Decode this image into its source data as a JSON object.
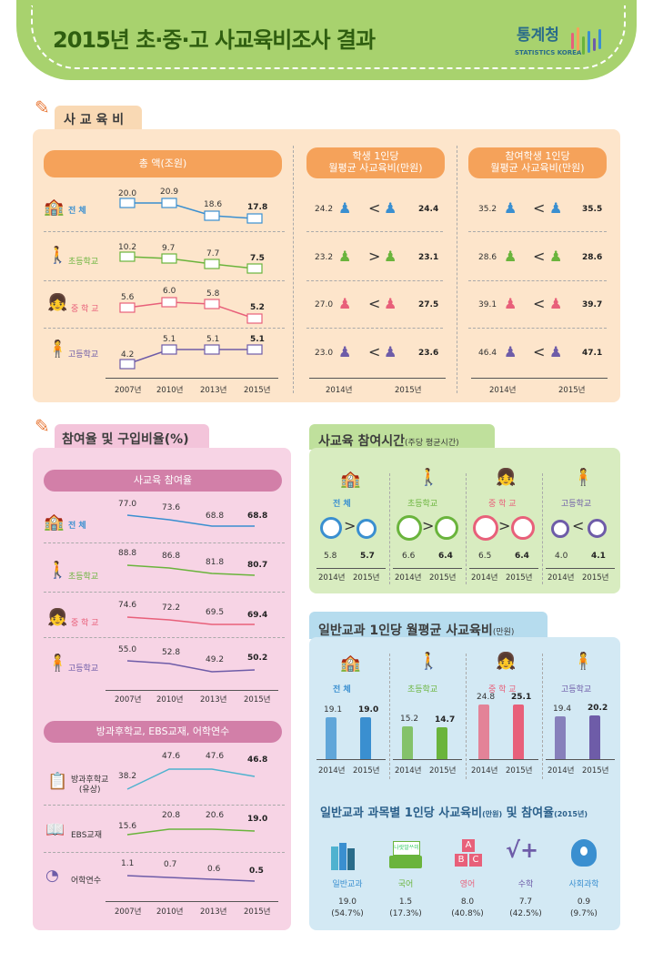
{
  "header": {
    "title": "2015년 초·중·고 사교육비조사 결과",
    "logo_name": "통계청",
    "logo_sub": "STATISTICS KOREA"
  },
  "colors": {
    "orange": "#f5a25a",
    "pink": "#ee8fb2",
    "green": "#a8d26e",
    "blue": "#86c7e3",
    "elem": "#6ab43c",
    "middle": "#e8607a",
    "high": "#6e5ca8",
    "total": "#3a8fd0"
  },
  "spend": {
    "section_title": "사 교 육 비",
    "total_header": "총     액(조원)",
    "student_header": "학생 1인당\n월평균 사교육비(만원)",
    "participant_header": "참여학생 1인당\n월평균 사교육비(만원)",
    "rows": [
      {
        "label": "전     체",
        "total": [
          "20.0",
          "20.9",
          "18.6",
          "17.8"
        ],
        "student": [
          "24.2",
          "<",
          "24.4"
        ],
        "participant": [
          "35.2",
          "<",
          "35.5"
        ]
      },
      {
        "label": "초등학교",
        "total": [
          "10.2",
          "9.7",
          "7.7",
          "7.5"
        ],
        "student": [
          "23.2",
          ">",
          "23.1"
        ],
        "participant": [
          "28.6",
          "<",
          "28.6"
        ]
      },
      {
        "label": "중 학 교",
        "total": [
          "5.6",
          "6.0",
          "5.8",
          "5.2"
        ],
        "student": [
          "27.0",
          "<",
          "27.5"
        ],
        "participant": [
          "39.1",
          "<",
          "39.7"
        ]
      },
      {
        "label": "고등학교",
        "total": [
          "4.2",
          "5.1",
          "5.1",
          "5.1"
        ],
        "student": [
          "23.0",
          "<",
          "23.6"
        ],
        "participant": [
          "46.4",
          "<",
          "47.1"
        ]
      }
    ],
    "years4": [
      "2007년",
      "2010년",
      "2013년",
      "2015년"
    ],
    "years2": [
      "2014년",
      "2015년"
    ]
  },
  "rate": {
    "section_title": "참여율 및 구입비율(%)",
    "participation_header": "사교육 참여율",
    "rows": [
      {
        "label": "전     체",
        "values": [
          "77.0",
          "73.6",
          "68.8",
          "68.8"
        ]
      },
      {
        "label": "초등학교",
        "values": [
          "88.8",
          "86.8",
          "81.8",
          "80.7"
        ]
      },
      {
        "label": "중 학 교",
        "values": [
          "74.6",
          "72.2",
          "69.5",
          "69.4"
        ]
      },
      {
        "label": "고등학교",
        "values": [
          "55.0",
          "52.8",
          "49.2",
          "50.2"
        ]
      }
    ],
    "purchase_header": "방과후학교, EBS교재, 어학연수",
    "purchase_rows": [
      {
        "label": "방과후학교\n(유상)",
        "values": [
          "38.2",
          "47.6",
          "47.6",
          "46.8"
        ]
      },
      {
        "label": "EBS교재",
        "values": [
          "15.6",
          "20.8",
          "20.6",
          "19.0"
        ]
      },
      {
        "label": "어학연수",
        "values": [
          "1.1",
          "0.7",
          "0.6",
          "0.5"
        ]
      }
    ],
    "years4": [
      "2007년",
      "2010년",
      "2013년",
      "2015년"
    ]
  },
  "time": {
    "section_title": "사교육 참여시간",
    "section_sub": "(주당 평균시간)",
    "groups": [
      {
        "label": "전     체",
        "values": [
          "5.8",
          "5.7"
        ],
        "sign": ">"
      },
      {
        "label": "초등학교",
        "values": [
          "6.6",
          "6.4"
        ],
        "sign": ">"
      },
      {
        "label": "중 학 교",
        "values": [
          "6.5",
          "6.4"
        ],
        "sign": ">"
      },
      {
        "label": "고등학교",
        "values": [
          "4.0",
          "4.1"
        ],
        "sign": "<"
      }
    ],
    "years2": [
      "2014년",
      "2015년"
    ]
  },
  "general": {
    "section_title": "일반교과 1인당 월평균 사교육비",
    "section_sub": "(만원)",
    "groups": [
      {
        "label": "전     체",
        "values": [
          19.1,
          19.0
        ],
        "labels": [
          "19.1",
          "19.0"
        ]
      },
      {
        "label": "초등학교",
        "values": [
          15.2,
          14.7
        ],
        "labels": [
          "15.2",
          "14.7"
        ]
      },
      {
        "label": "중 학 교",
        "values": [
          24.8,
          25.1
        ],
        "labels": [
          "24.8",
          "25.1"
        ]
      },
      {
        "label": "고등학교",
        "values": [
          19.4,
          20.2
        ],
        "labels": [
          "19.4",
          "20.2"
        ]
      }
    ],
    "years2": [
      "2014년",
      "2015년"
    ],
    "subject_title": "일반교과 과목별 1인당 사교육비",
    "subject_title_unit": "(만원)",
    "subject_title_tail": " 및 참여율",
    "subject_title_year": "(2015년)",
    "subjects": [
      {
        "name": "일반교과",
        "value": "19.0",
        "rate": "(54.7%)"
      },
      {
        "name": "국어",
        "value": "1.5",
        "rate": "(17.3%)"
      },
      {
        "name": "영어",
        "value": "8.0",
        "rate": "(40.8%)"
      },
      {
        "name": "수학",
        "value": "7.7",
        "rate": "(42.5%)"
      },
      {
        "name": "사회과학",
        "value": "0.9",
        "rate": "(9.7%)"
      }
    ],
    "book_text": "나랏말ᄊᆞ미",
    "abc_text": [
      "A",
      "B",
      "C"
    ]
  }
}
